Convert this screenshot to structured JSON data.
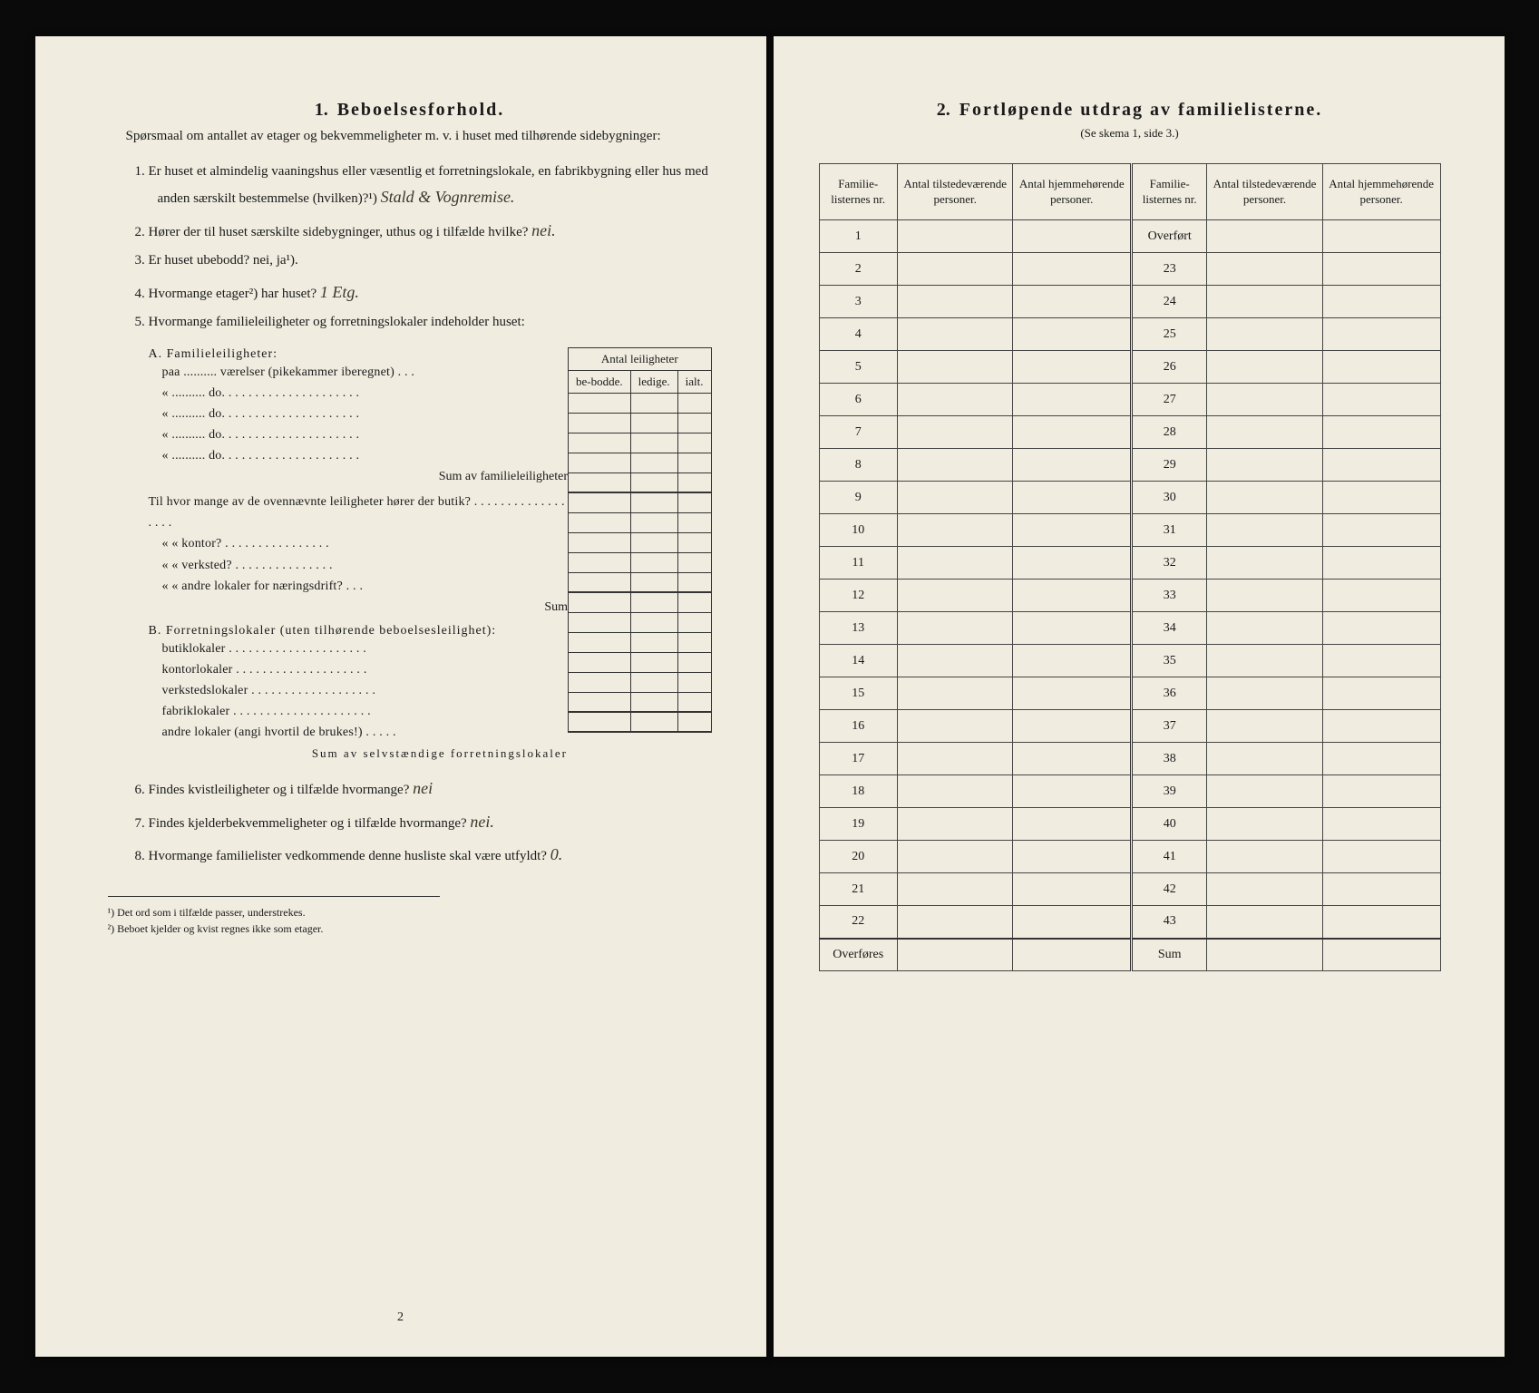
{
  "left": {
    "section_number": "1.",
    "section_title": "Beboelsesforhold.",
    "intro": "Spørsmaal om antallet av etager og bekvemmeligheter m. v. i huset med tilhørende sidebygninger:",
    "q1": "Er huset et almindelig vaaningshus eller væsentlig et forretningslokale, en fabrikbygning eller hus med anden særskilt bestemmelse (hvilken)?¹)",
    "q1_answer": "Stald & Vognremise.",
    "q2": "Hører der til huset særskilte sidebygninger, uthus og i tilfælde hvilke?",
    "q2_answer": "nei.",
    "q3": "Er huset ubebodd? nei, ja¹).",
    "q4": "Hvormange etager²) har huset?",
    "q4_answer": "1 Etg.",
    "q5": "Hvormange familieleiligheter og forretningslokaler indeholder huset:",
    "table_header": "Antal leiligheter",
    "col_bebodde": "be-bodde.",
    "col_ledige": "ledige.",
    "col_ialt": "ialt.",
    "a_heading": "A. Familieleiligheter:",
    "a_line1": "paa .......... værelser (pikekammer iberegnet) . . .",
    "a_do": "« .......... do. . . . . . . . . . . . . . . . . . . . .",
    "a_sum": "Sum av familieleiligheter",
    "til_line": "Til hvor mange av de ovennævnte leiligheter hører der butik? . . . . . . . . . . . . . . . . . .",
    "kontor": "« « kontor? . . . . . . . . . . . . . . . .",
    "verksted": "« « verksted? . . . . . . . . . . . . . . .",
    "andre": "« « andre lokaler for næringsdrift? . . .",
    "sum_label": "Sum",
    "b_heading": "B. Forretningslokaler (uten tilhørende beboelsesleilighet):",
    "b1": "butiklokaler . . . . . . . . . . . . . . . . . . . . .",
    "b2": "kontorlokaler . . . . . . . . . . . . . . . . . . . .",
    "b3": "verkstedslokaler . . . . . . . . . . . . . . . . . . .",
    "b4": "fabriklokaler . . . . . . . . . . . . . . . . . . . . .",
    "b5": "andre lokaler (angi hvortil de brukes!) . . . . .",
    "b_sum": "Sum av selvstændige forretningslokaler",
    "q6": "Findes kvistleiligheter og i tilfælde hvormange?",
    "q6_answer": "nei",
    "q7": "Findes kjelderbekvemmeligheter og i tilfælde hvormange?",
    "q7_answer": "nei.",
    "q8": "Hvormange familielister vedkommende denne husliste skal være utfyldt?",
    "q8_answer": "0.",
    "footnote1": "¹) Det ord som i tilfælde passer, understrekes.",
    "footnote2": "²) Beboet kjelder og kvist regnes ikke som etager.",
    "page_number": "2"
  },
  "right": {
    "section_number": "2.",
    "section_title": "Fortløpende utdrag av familielisterne.",
    "subtitle": "(Se skema 1, side 3.)",
    "headers": {
      "h1": "Familie-listernes nr.",
      "h2": "Antal tilstedeværende personer.",
      "h3": "Antal hjemmehørende personer.",
      "h4": "Familie-listernes nr.",
      "h5": "Antal tilstedeværende personer.",
      "h6": "Antal hjemmehørende personer."
    },
    "left_rows": [
      "1",
      "2",
      "3",
      "4",
      "5",
      "6",
      "7",
      "8",
      "9",
      "10",
      "11",
      "12",
      "13",
      "14",
      "15",
      "16",
      "17",
      "18",
      "19",
      "20",
      "21",
      "22"
    ],
    "left_last": "Overføres",
    "right_first": "Overført",
    "right_rows": [
      "23",
      "24",
      "25",
      "26",
      "27",
      "28",
      "29",
      "30",
      "31",
      "32",
      "33",
      "34",
      "35",
      "36",
      "37",
      "38",
      "39",
      "40",
      "41",
      "42",
      "43"
    ],
    "right_last": "Sum"
  },
  "colors": {
    "paper": "#f0ece0",
    "ink": "#1a1a1a",
    "background": "#0a0a0a",
    "handwriting": "#3a3a2a"
  },
  "typography": {
    "body_fontsize": 15,
    "title_fontsize": 20,
    "footnote_fontsize": 12
  }
}
